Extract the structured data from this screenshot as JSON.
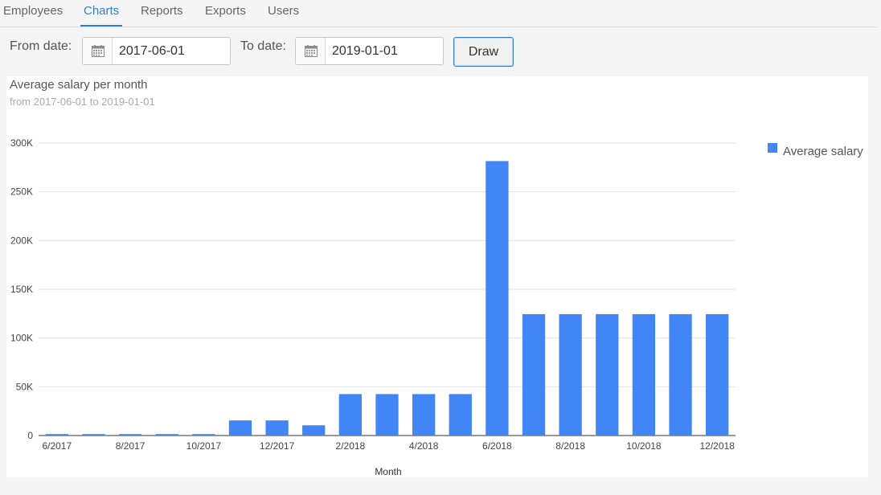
{
  "nav": {
    "tabs": [
      "Employees",
      "Charts",
      "Reports",
      "Exports",
      "Users"
    ],
    "active_tab": "Charts"
  },
  "filters": {
    "from_label": "From date:",
    "from_value": "2017-06-01",
    "to_label": "To date:",
    "to_value": "2019-01-01",
    "draw_label": "Draw"
  },
  "colors": {
    "bar": "#4285f4",
    "accent": "#2f7fd6"
  },
  "chart_data": {
    "type": "bar",
    "title": "Average salary per month",
    "subtitle": "from 2017-06-01 to 2019-01-01",
    "xlabel": "Month",
    "ylabel": "",
    "categories": [
      "6/2017",
      "7/2017",
      "8/2017",
      "9/2017",
      "10/2017",
      "11/2017",
      "12/2017",
      "1/2018",
      "2/2018",
      "3/2018",
      "4/2018",
      "5/2018",
      "6/2018",
      "7/2018",
      "8/2018",
      "9/2018",
      "10/2018",
      "11/2018",
      "12/2018"
    ],
    "shown_tick_labels": [
      "6/2017",
      "8/2017",
      "10/2017",
      "12/2017",
      "2/2018",
      "4/2018",
      "6/2018",
      "8/2018",
      "10/2018",
      "12/2018"
    ],
    "series": [
      {
        "name": "Average salary",
        "values": [
          1500,
          1500,
          1500,
          1500,
          1500,
          15500,
          15500,
          10500,
          42500,
          42500,
          42500,
          42500,
          281500,
          124500,
          124500,
          124500,
          124500,
          124500,
          124500
        ]
      }
    ],
    "y_ticks": [
      "0",
      "50K",
      "100K",
      "150K",
      "200K",
      "250K",
      "300K"
    ],
    "ylim": [
      0,
      300000
    ],
    "grid": true,
    "legend": "right"
  }
}
